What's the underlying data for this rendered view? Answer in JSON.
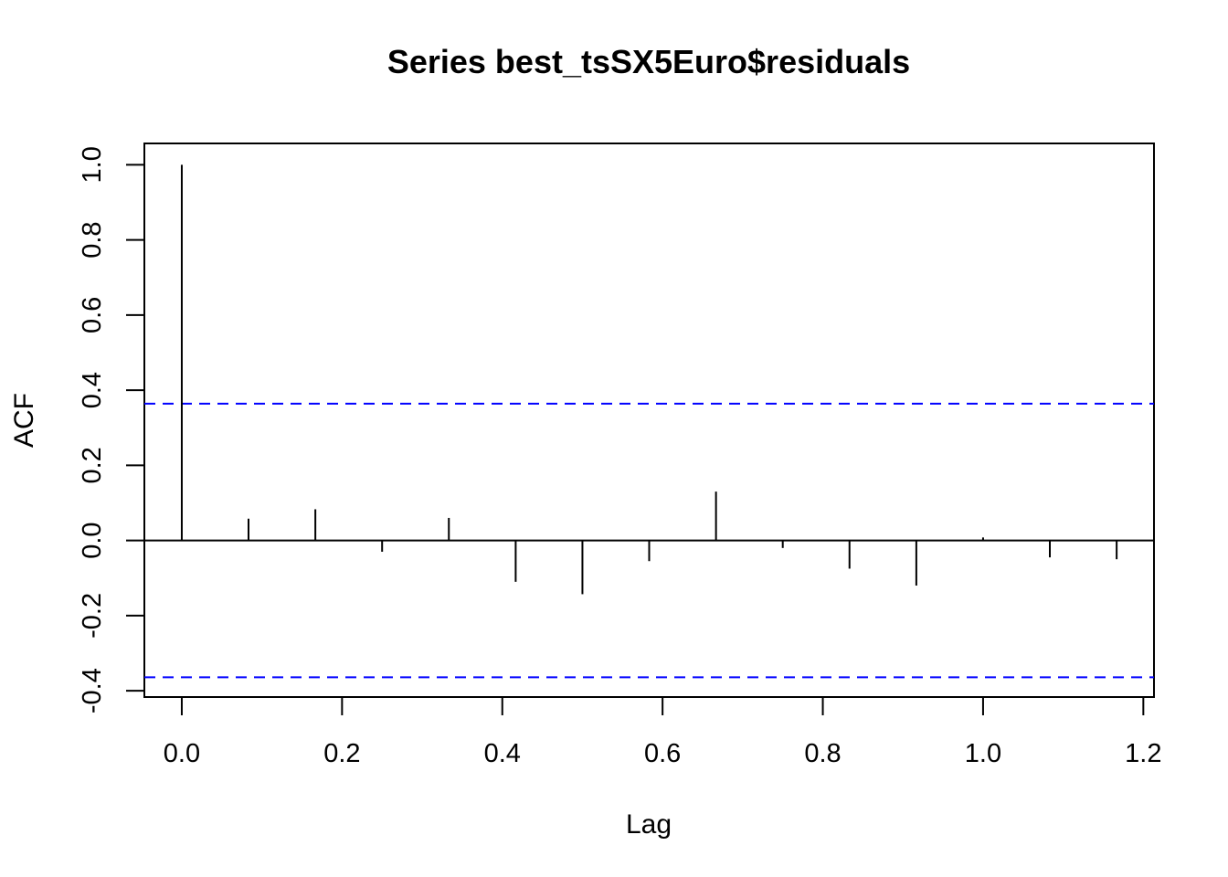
{
  "chart_data": {
    "type": "bar",
    "title": "Series  best_tsSX5Euro$residuals",
    "xlabel": "Lag",
    "ylabel": "ACF",
    "xlim": [
      -0.0467,
      1.2133
    ],
    "ylim": [
      -0.4167,
      1.0567
    ],
    "xticks": [
      0.0,
      0.2,
      0.4,
      0.6,
      0.8,
      1.0,
      1.2
    ],
    "xtick_labels": [
      "0.0",
      "0.2",
      "0.4",
      "0.6",
      "0.8",
      "1.0",
      "1.2"
    ],
    "yticks": [
      -0.4,
      -0.2,
      0.0,
      0.2,
      0.4,
      0.6,
      0.8,
      1.0
    ],
    "ytick_labels": [
      "-0.4",
      "-0.2",
      "0.0",
      "0.2",
      "0.4",
      "0.6",
      "0.8",
      "1.0"
    ],
    "lags": [
      0.0,
      0.0833,
      0.1667,
      0.25,
      0.3333,
      0.4167,
      0.5,
      0.5833,
      0.6667,
      0.75,
      0.8333,
      0.9167,
      1.0,
      1.0833,
      1.1667
    ],
    "acf": [
      1.0,
      0.058,
      0.083,
      -0.03,
      0.06,
      -0.11,
      -0.143,
      -0.055,
      0.13,
      -0.02,
      -0.075,
      -0.12,
      0.008,
      -0.045,
      -0.05
    ],
    "conf_bounds": [
      0.364,
      -0.364
    ],
    "conf_color": "#0000ff",
    "bar_color": "#000000",
    "zero_line": true,
    "grid": false,
    "legend": "none"
  }
}
